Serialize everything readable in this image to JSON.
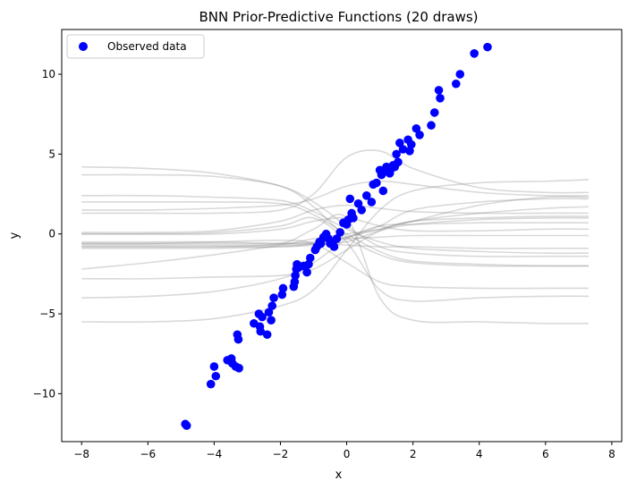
{
  "chart_data": {
    "type": "scatter",
    "title": "BNN Prior-Predictive Functions (20 draws)",
    "xlabel": "x",
    "ylabel": "y",
    "xlim": [
      -8.6,
      8.3
    ],
    "ylim": [
      -13.0,
      12.8
    ],
    "xticks": [
      -8,
      -6,
      -4,
      -2,
      0,
      2,
      4,
      6,
      8
    ],
    "yticks": [
      -10,
      -5,
      0,
      5,
      10
    ],
    "xtick_labels": [
      "−8",
      "−6",
      "−4",
      "−2",
      "0",
      "2",
      "4",
      "6",
      "8"
    ],
    "ytick_labels": [
      "−10",
      "−5",
      "0",
      "5",
      "10"
    ],
    "grid": false,
    "legend": {
      "position": "top-left",
      "entries": [
        "Observed data"
      ]
    },
    "colors": {
      "observed": "#0000ff",
      "draws": "#808080"
    },
    "observed": {
      "name": "Observed data",
      "x": [
        -4.87,
        -4.83,
        -4.1,
        -4.0,
        -3.95,
        -3.6,
        -3.48,
        -3.45,
        -3.35,
        -3.3,
        -3.27,
        -3.25,
        -2.8,
        -2.65,
        -2.62,
        -2.6,
        -2.55,
        -2.4,
        -2.35,
        -2.28,
        -2.25,
        -2.2,
        -1.95,
        -1.92,
        -1.6,
        -1.57,
        -1.55,
        -1.52,
        -1.5,
        -1.45,
        -1.3,
        -1.2,
        -1.15,
        -1.1,
        -0.95,
        -0.9,
        -0.82,
        -0.78,
        -0.7,
        -0.62,
        -0.55,
        -0.5,
        -0.42,
        -0.38,
        -0.3,
        -0.2,
        -0.1,
        0.0,
        0.05,
        0.1,
        0.15,
        0.2,
        0.35,
        0.45,
        0.6,
        0.75,
        0.8,
        0.9,
        1.0,
        1.05,
        1.1,
        1.15,
        1.2,
        1.25,
        1.3,
        1.35,
        1.4,
        1.45,
        1.5,
        1.55,
        1.6,
        1.7,
        1.85,
        1.9,
        1.95,
        2.1,
        2.2,
        2.55,
        2.65,
        2.78,
        2.82,
        3.3,
        3.42,
        3.85,
        4.25
      ],
      "y": [
        -11.9,
        -12.0,
        -9.4,
        -8.3,
        -8.9,
        -7.9,
        -7.8,
        -8.1,
        -8.3,
        -6.3,
        -6.6,
        -8.4,
        -5.6,
        -5.0,
        -5.8,
        -6.1,
        -5.2,
        -6.3,
        -4.9,
        -5.4,
        -4.5,
        -4.0,
        -3.8,
        -3.4,
        -3.3,
        -3.0,
        -2.6,
        -2.2,
        -1.9,
        -2.1,
        -2.0,
        -2.4,
        -1.9,
        -1.5,
        -1.0,
        -0.8,
        -0.5,
        -0.6,
        -0.2,
        0.0,
        -0.3,
        -0.6,
        -0.5,
        -0.8,
        -0.3,
        0.1,
        0.7,
        0.6,
        0.9,
        2.2,
        1.3,
        1.0,
        1.9,
        1.5,
        2.4,
        2.0,
        3.1,
        3.2,
        4.0,
        3.7,
        2.7,
        3.9,
        4.2,
        4.0,
        3.8,
        4.1,
        4.3,
        4.2,
        5.0,
        4.5,
        5.7,
        5.3,
        5.9,
        5.2,
        5.6,
        6.6,
        6.2,
        6.8,
        7.6,
        9.0,
        8.5,
        9.4,
        10.0,
        11.3,
        11.7
      ]
    },
    "draws": [
      {
        "x": [
          -8,
          -6,
          -4,
          -2,
          -1,
          0,
          1,
          2,
          4,
          6,
          7.3
        ],
        "y": [
          4.2,
          4.1,
          3.8,
          3.0,
          2.0,
          0.5,
          -0.8,
          -1.2,
          -1.4,
          -1.4,
          -1.4
        ]
      },
      {
        "x": [
          -8,
          -6,
          -4,
          -2,
          -1,
          0,
          1,
          2,
          4,
          6,
          7.3
        ],
        "y": [
          3.7,
          3.7,
          3.6,
          3.0,
          1.7,
          -0.2,
          -1.3,
          -1.8,
          -2.0,
          -2.0,
          -2.0
        ]
      },
      {
        "x": [
          -8,
          -6,
          -4,
          -2,
          -1,
          0,
          1,
          2,
          4,
          6,
          7.3
        ],
        "y": [
          2.4,
          2.4,
          2.3,
          2.1,
          1.4,
          0.3,
          -0.5,
          -0.9,
          -1.1,
          -1.2,
          -1.2
        ]
      },
      {
        "x": [
          -8,
          -6,
          -4,
          -2,
          -1,
          0,
          1,
          2,
          4,
          6,
          7.3
        ],
        "y": [
          2.0,
          2.0,
          2.0,
          1.9,
          1.2,
          0.0,
          -1.1,
          -1.7,
          -1.9,
          -2.0,
          -2.0
        ]
      },
      {
        "x": [
          -8,
          -6,
          -4,
          -2,
          -1,
          0,
          1,
          2,
          4,
          6,
          7.3
        ],
        "y": [
          1.5,
          1.5,
          1.6,
          1.8,
          2.2,
          3.0,
          3.3,
          3.1,
          2.6,
          2.4,
          2.4
        ]
      },
      {
        "x": [
          -8,
          -6,
          -4,
          -2,
          -1,
          0,
          1,
          2,
          4,
          6,
          7.3
        ],
        "y": [
          1.3,
          1.3,
          1.3,
          1.5,
          2.5,
          4.8,
          5.2,
          4.1,
          2.9,
          2.6,
          2.6
        ]
      },
      {
        "x": [
          -8,
          -6,
          -4,
          -2,
          -1,
          0,
          1,
          2,
          4,
          6,
          7.3
        ],
        "y": [
          0.1,
          0.1,
          0.2,
          0.8,
          1.5,
          1.8,
          1.6,
          1.4,
          1.3,
          1.3,
          1.3
        ]
      },
      {
        "x": [
          -8,
          -6,
          -4,
          -2,
          -1,
          0,
          1,
          2,
          4,
          6,
          7.3
        ],
        "y": [
          0.0,
          0.0,
          0.0,
          0.3,
          0.8,
          1.0,
          0.5,
          0.2,
          0.2,
          0.3,
          0.3
        ]
      },
      {
        "x": [
          -8,
          -6,
          -4,
          -2,
          -1,
          0,
          1,
          2,
          4,
          6,
          7.3
        ],
        "y": [
          -0.5,
          -0.5,
          -0.5,
          -0.6,
          -0.6,
          -0.7,
          -0.8,
          -0.8,
          -0.9,
          -0.9,
          -0.9
        ]
      },
      {
        "x": [
          -8,
          -6,
          -4,
          -2,
          -1,
          0,
          1,
          2,
          4,
          6,
          7.3
        ],
        "y": [
          -0.7,
          -0.7,
          -0.7,
          -0.7,
          -0.6,
          -0.2,
          0.5,
          1.5,
          2.0,
          2.2,
          2.2
        ]
      },
      {
        "x": [
          -8,
          -6,
          -4,
          -2,
          -1,
          0,
          1,
          2,
          4,
          6,
          7.3
        ],
        "y": [
          -0.8,
          -0.8,
          -0.8,
          -0.8,
          -0.7,
          -0.5,
          0.2,
          0.6,
          0.9,
          1.0,
          1.0
        ]
      },
      {
        "x": [
          -8,
          -6,
          -4,
          -2,
          -1,
          0,
          1,
          2,
          4,
          6,
          7.3
        ],
        "y": [
          -0.9,
          -0.9,
          -0.9,
          -0.8,
          -0.6,
          -0.2,
          0.3,
          0.8,
          1.3,
          1.6,
          1.7
        ]
      },
      {
        "x": [
          -8,
          -6,
          -4,
          -2,
          -1,
          0,
          1,
          2,
          4,
          6,
          7.3
        ],
        "y": [
          -0.6,
          -0.6,
          -0.6,
          -0.6,
          -0.5,
          -0.3,
          -0.2,
          -0.1,
          -0.1,
          -0.1,
          -0.1
        ]
      },
      {
        "x": [
          -8,
          -6,
          -4,
          -2,
          -1,
          0,
          1,
          2,
          4,
          6,
          7.3
        ],
        "y": [
          -2.2,
          -1.8,
          -1.3,
          -0.7,
          -0.3,
          0.0,
          0.3,
          0.8,
          1.8,
          2.3,
          2.3
        ]
      },
      {
        "x": [
          -8,
          -6,
          -4,
          -2,
          -1,
          0,
          1,
          2,
          4,
          6,
          7.3
        ],
        "y": [
          -2.8,
          -2.8,
          -2.7,
          -2.6,
          -2.2,
          -1.0,
          0.2,
          0.8,
          1.0,
          1.1,
          1.1
        ]
      },
      {
        "x": [
          -8,
          -6,
          -4,
          -2,
          -1,
          0,
          1,
          2,
          4,
          6,
          7.3
        ],
        "y": [
          -4.0,
          -3.9,
          -3.6,
          -2.8,
          -1.8,
          -0.3,
          0.5,
          0.6,
          0.7,
          0.7,
          0.7
        ]
      },
      {
        "x": [
          -8,
          -6,
          -4,
          -2,
          -1,
          0,
          1,
          2,
          4,
          6,
          7.3
        ],
        "y": [
          -5.5,
          -5.5,
          -5.3,
          -4.5,
          -3.5,
          -1.0,
          1.5,
          2.7,
          3.2,
          3.3,
          3.4
        ]
      },
      {
        "x": [
          -8,
          -6,
          -4,
          -2,
          -1,
          0,
          1,
          2,
          4,
          6,
          7.3
        ],
        "y": [
          -0.6,
          -0.6,
          -0.5,
          -0.4,
          -0.6,
          -1.8,
          -3.0,
          -3.3,
          -3.4,
          -3.4,
          -3.4
        ]
      },
      {
        "x": [
          -8,
          -6,
          -4,
          -2,
          -1,
          0,
          1,
          2,
          4,
          6,
          7.3
        ],
        "y": [
          0.0,
          0.0,
          0.1,
          0.5,
          1.0,
          -0.5,
          -3.5,
          -4.2,
          -4.0,
          -3.9,
          -3.9
        ]
      },
      {
        "x": [
          -8,
          -6,
          -4,
          -2,
          -1,
          0,
          1,
          2,
          4,
          6,
          7.3
        ],
        "y": [
          -0.8,
          -0.8,
          -0.8,
          -0.6,
          0.3,
          1.0,
          -4.0,
          -5.4,
          -5.5,
          -5.6,
          -5.6
        ]
      }
    ]
  }
}
